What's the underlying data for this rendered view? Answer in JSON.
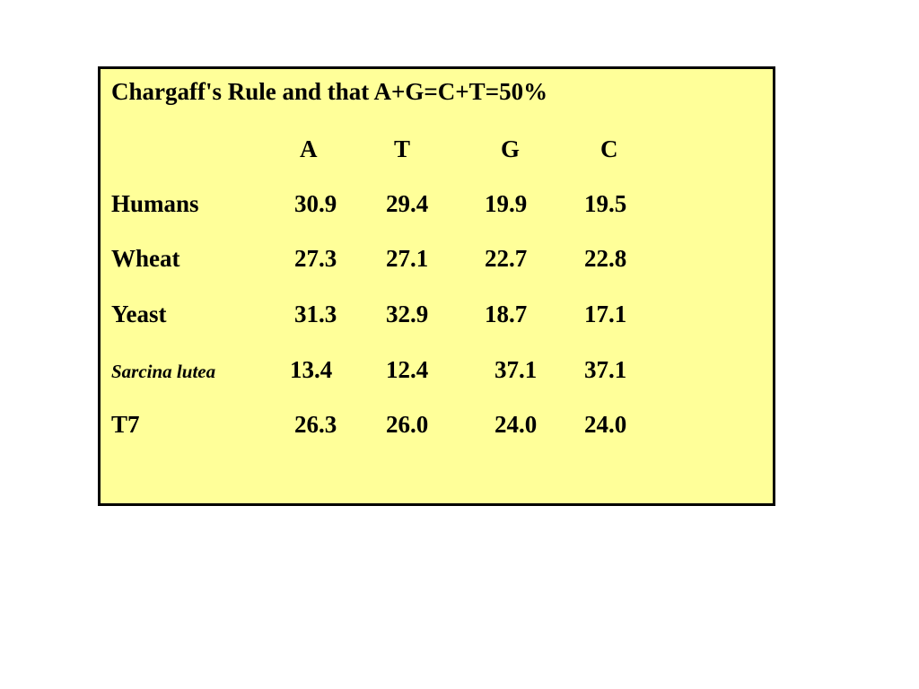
{
  "slide": {
    "title": "Chargaff's Rule and that A+G=C+T=50%",
    "columns": [
      "A",
      "T",
      "G",
      "C"
    ],
    "rows": [
      {
        "organism": "Humans",
        "values": [
          "30.9",
          "29.4",
          "19.9",
          "19.5"
        ]
      },
      {
        "organism": "Wheat",
        "values": [
          "27.3",
          "27.1",
          "22.7",
          "22.8"
        ]
      },
      {
        "organism": "Yeast",
        "values": [
          "31.3",
          "32.9",
          "18.7",
          "17.1"
        ]
      },
      {
        "organism": "Sarcina lutea",
        "values": [
          "13.4",
          "12.4",
          "37.1",
          "37.1"
        ]
      },
      {
        "organism": "T7",
        "values": [
          "26.3",
          "26.0",
          "24.0",
          "24.0"
        ]
      }
    ],
    "colors": {
      "box_background": "#ffff99",
      "border": "#000000",
      "text": "#000000"
    }
  }
}
